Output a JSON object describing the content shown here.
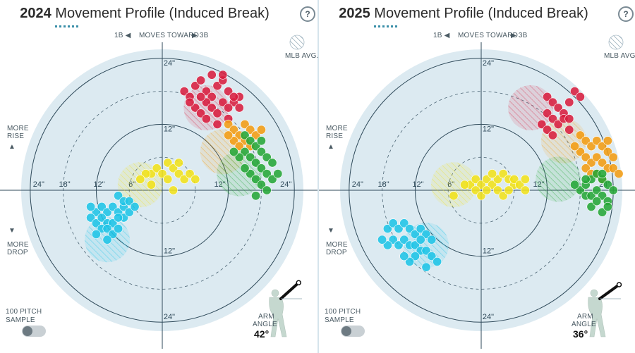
{
  "panels": [
    {
      "year": "2024",
      "title_rest": " Movement Profile (Induced Break)",
      "help_label": "?",
      "direction": {
        "left": "1B ◀",
        "mid": "MOVES TOWARD",
        "right": "▶ 3B"
      },
      "mlb_avg_label": "MLB AVG.",
      "more_rise": [
        "MORE",
        "RISE",
        "▲"
      ],
      "more_drop": [
        "▼",
        "MORE",
        "DROP"
      ],
      "sample_label": [
        "100 PITCH",
        "SAMPLE"
      ],
      "arm_angle_label": [
        "ARM",
        "ANGLE"
      ],
      "arm_angle_value": "42°",
      "arm_angle_deg": 42,
      "ring_labels": {
        "left": [
          "24\"",
          "18\"",
          "12\"",
          "6\""
        ],
        "right": [
          "12\"",
          "24\""
        ],
        "top": [
          "24\"",
          "12\""
        ],
        "bottom": [
          "12\"",
          "24\""
        ]
      },
      "chart_data": {
        "type": "scatter",
        "xlabel": "",
        "ylabel": "",
        "xlim": [
          -26,
          26
        ],
        "ylim": [
          -26,
          26
        ],
        "units": "inches",
        "series": [
          {
            "color": "#d81e3f",
            "avg": [
              8,
              15
            ],
            "points": [
              [
                4,
                18
              ],
              [
                5,
                17
              ],
              [
                6,
                19
              ],
              [
                7,
                20
              ],
              [
                8,
                18
              ],
              [
                9,
                17
              ],
              [
                10,
                19
              ],
              [
                11,
                20
              ],
              [
                12,
                18
              ],
              [
                13,
                16
              ],
              [
                14,
                17
              ],
              [
                6,
                15
              ],
              [
                7,
                14
              ],
              [
                8,
                16
              ],
              [
                9,
                15
              ],
              [
                10,
                14
              ],
              [
                11,
                16
              ],
              [
                12,
                15
              ],
              [
                13,
                17
              ],
              [
                9,
                21
              ],
              [
                11,
                21
              ],
              [
                5,
                16
              ],
              [
                8,
                13
              ],
              [
                10,
                12
              ],
              [
                12,
                13
              ],
              [
                7,
                17
              ],
              [
                14,
                15
              ]
            ]
          },
          {
            "color": "#f39c12",
            "avg": [
              11,
              7
            ],
            "points": [
              [
                12,
                12
              ],
              [
                13,
                11
              ],
              [
                14,
                10
              ],
              [
                15,
                12
              ],
              [
                16,
                11
              ],
              [
                17,
                10
              ],
              [
                18,
                11
              ],
              [
                13,
                9
              ],
              [
                15,
                9
              ],
              [
                16,
                8
              ],
              [
                14,
                8
              ],
              [
                12,
                10
              ]
            ]
          },
          {
            "color": "#26a637",
            "avg": [
              14,
              3
            ],
            "points": [
              [
                15,
                10
              ],
              [
                16,
                9
              ],
              [
                17,
                8
              ],
              [
                18,
                7
              ],
              [
                19,
                6
              ],
              [
                20,
                5
              ],
              [
                15,
                7
              ],
              [
                16,
                6
              ],
              [
                17,
                5
              ],
              [
                18,
                4
              ],
              [
                19,
                3
              ],
              [
                20,
                2
              ],
              [
                16,
                3
              ],
              [
                17,
                2
              ],
              [
                18,
                1
              ],
              [
                19,
                0
              ],
              [
                15,
                4
              ],
              [
                14,
                6
              ],
              [
                13,
                7
              ],
              [
                18,
                9
              ],
              [
                21,
                3
              ],
              [
                17,
                -1
              ]
            ]
          },
          {
            "color": "#f1e11a",
            "avg": [
              -4,
              1
            ],
            "points": [
              [
                -2,
                3
              ],
              [
                -1,
                4
              ],
              [
                0,
                3
              ],
              [
                1,
                5
              ],
              [
                2,
                4
              ],
              [
                3,
                5
              ],
              [
                -3,
                3
              ],
              [
                -2,
                1
              ],
              [
                1,
                2
              ],
              [
                3,
                3
              ],
              [
                4,
                2
              ],
              [
                2,
                0
              ],
              [
                -4,
                2
              ],
              [
                5,
                3
              ],
              [
                6,
                2
              ]
            ]
          },
          {
            "color": "#1fc4e6",
            "avg": [
              -10,
              -9
            ],
            "points": [
              [
                -12,
                -4
              ],
              [
                -11,
                -3
              ],
              [
                -10,
                -4
              ],
              [
                -9,
                -3
              ],
              [
                -8,
                -4
              ],
              [
                -7,
                -5
              ],
              [
                -13,
                -5
              ],
              [
                -12,
                -6
              ],
              [
                -11,
                -5
              ],
              [
                -10,
                -6
              ],
              [
                -9,
                -6
              ],
              [
                -8,
                -5
              ],
              [
                -11,
                -7
              ],
              [
                -10,
                -7
              ],
              [
                -9,
                -8
              ],
              [
                -12,
                -8
              ],
              [
                -7,
                -3
              ],
              [
                -6,
                -4
              ],
              [
                -8,
                -1
              ],
              [
                -7,
                -2
              ],
              [
                -6,
                -2
              ],
              [
                -5,
                -3
              ],
              [
                -13,
                -3
              ],
              [
                -10,
                -9
              ],
              [
                -8,
                -7
              ]
            ]
          }
        ]
      }
    },
    {
      "year": "2025",
      "title_rest": " Movement Profile (Induced Break)",
      "help_label": "?",
      "direction": {
        "left": "1B ◀",
        "mid": "MOVES TOWARD",
        "right": "▶ 3B"
      },
      "mlb_avg_label": "MLB AVG.",
      "more_rise": [
        "MORE",
        "RISE",
        "▲"
      ],
      "more_drop": [
        "▼",
        "MORE",
        "DROP"
      ],
      "sample_label": [
        "100 PITCH",
        "SAMPLE"
      ],
      "arm_angle_label": [
        "ARM",
        "ANGLE"
      ],
      "arm_angle_value": "36°",
      "arm_angle_deg": 36,
      "ring_labels": {
        "left": [
          "24\"",
          "18\"",
          "12\"",
          "6\""
        ],
        "right": [
          "12\"",
          "24\""
        ],
        "top": [
          "24\"",
          "12\""
        ],
        "bottom": [
          "12\"",
          "24\""
        ]
      },
      "chart_data": {
        "type": "scatter",
        "xlabel": "",
        "ylabel": "",
        "xlim": [
          -26,
          26
        ],
        "ylim": [
          -26,
          26
        ],
        "units": "inches",
        "series": [
          {
            "color": "#d81e3f",
            "avg": [
              9,
              15
            ],
            "points": [
              [
                12,
                17
              ],
              [
                13,
                16
              ],
              [
                14,
                15
              ],
              [
                15,
                14
              ],
              [
                16,
                16
              ],
              [
                17,
                18
              ],
              [
                12,
                14
              ],
              [
                13,
                13
              ],
              [
                14,
                12
              ],
              [
                15,
                13
              ],
              [
                16,
                11
              ],
              [
                11,
                12
              ],
              [
                12,
                11
              ],
              [
                13,
                10
              ],
              [
                16,
                13
              ],
              [
                18,
                17
              ]
            ]
          },
          {
            "color": "#f39c12",
            "avg": [
              15,
              9
            ],
            "points": [
              [
                18,
                10
              ],
              [
                19,
                9
              ],
              [
                20,
                8
              ],
              [
                21,
                9
              ],
              [
                22,
                8
              ],
              [
                23,
                7
              ],
              [
                24,
                6
              ],
              [
                18,
                7
              ],
              [
                19,
                6
              ],
              [
                20,
                5
              ],
              [
                21,
                6
              ],
              [
                22,
                5
              ],
              [
                23,
                4
              ],
              [
                19,
                4
              ],
              [
                20,
                3
              ],
              [
                21,
                3
              ],
              [
                22,
                2
              ],
              [
                24,
                4
              ],
              [
                17,
                8
              ],
              [
                23,
                9
              ],
              [
                25,
                3
              ]
            ]
          },
          {
            "color": "#26a637",
            "avg": [
              14,
              2
            ],
            "points": [
              [
                18,
                0
              ],
              [
                19,
                1
              ],
              [
                20,
                2
              ],
              [
                21,
                3
              ],
              [
                22,
                2
              ],
              [
                23,
                1
              ],
              [
                19,
                -1
              ],
              [
                20,
                -1
              ],
              [
                21,
                0
              ],
              [
                22,
                -1
              ],
              [
                23,
                -2
              ],
              [
                20,
                -3
              ],
              [
                21,
                -2
              ],
              [
                22,
                -4
              ],
              [
                23,
                -3
              ],
              [
                24,
                0
              ],
              [
                22,
                3
              ],
              [
                19,
                2
              ],
              [
                17,
                1
              ]
            ]
          },
          {
            "color": "#f1e11a",
            "avg": [
              -5,
              1
            ],
            "points": [
              [
                -2,
                1
              ],
              [
                -1,
                2
              ],
              [
                0,
                1
              ],
              [
                1,
                2
              ],
              [
                2,
                1
              ],
              [
                3,
                2
              ],
              [
                4,
                3
              ],
              [
                5,
                2
              ],
              [
                6,
                1
              ],
              [
                -1,
                0
              ],
              [
                0,
                -1
              ],
              [
                1,
                0
              ],
              [
                3,
                0
              ],
              [
                4,
                -1
              ],
              [
                5,
                0
              ],
              [
                6,
                2
              ],
              [
                7,
                1
              ],
              [
                8,
                0
              ],
              [
                -3,
                1
              ],
              [
                -5,
                -1
              ],
              [
                2,
                3
              ],
              [
                8,
                2
              ]
            ]
          },
          {
            "color": "#1fc4e6",
            "avg": [
              -10,
              -10
            ],
            "points": [
              [
                -17,
                -7
              ],
              [
                -16,
                -6
              ],
              [
                -15,
                -7
              ],
              [
                -14,
                -6
              ],
              [
                -13,
                -7
              ],
              [
                -12,
                -8
              ],
              [
                -11,
                -7
              ],
              [
                -10,
                -8
              ],
              [
                -16,
                -9
              ],
              [
                -15,
                -10
              ],
              [
                -14,
                -9
              ],
              [
                -13,
                -10
              ],
              [
                -12,
                -10
              ],
              [
                -11,
                -11
              ],
              [
                -10,
                -11
              ],
              [
                -17,
                -10
              ],
              [
                -18,
                -9
              ],
              [
                -9,
                -12
              ],
              [
                -8,
                -13
              ],
              [
                -10,
                -14
              ],
              [
                -12,
                -12
              ],
              [
                -13,
                -13
              ],
              [
                -9,
                -9
              ],
              [
                -11,
                -9
              ],
              [
                -14,
                -12
              ]
            ]
          }
        ]
      }
    }
  ]
}
